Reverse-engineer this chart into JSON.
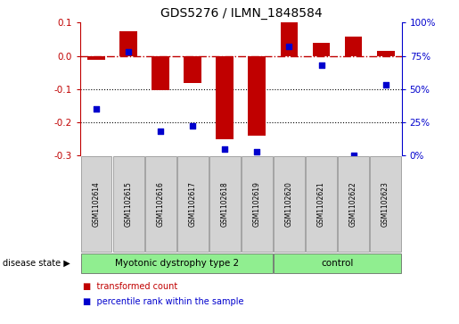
{
  "title": "GDS5276 / ILMN_1848584",
  "samples": [
    "GSM1102614",
    "GSM1102615",
    "GSM1102616",
    "GSM1102617",
    "GSM1102618",
    "GSM1102619",
    "GSM1102620",
    "GSM1102621",
    "GSM1102622",
    "GSM1102623"
  ],
  "red_values": [
    -0.012,
    0.075,
    -0.102,
    -0.082,
    -0.252,
    -0.24,
    0.1,
    0.04,
    0.057,
    0.015
  ],
  "blue_values": [
    35,
    78,
    18,
    22,
    5,
    3,
    82,
    68,
    0,
    53
  ],
  "ylim_left": [
    -0.3,
    0.1
  ],
  "ylim_right": [
    0,
    100
  ],
  "yticks_left": [
    -0.3,
    -0.2,
    -0.1,
    0.0,
    0.1
  ],
  "yticks_right": [
    0,
    25,
    50,
    75,
    100
  ],
  "ytick_labels_right": [
    "0%",
    "25%",
    "50%",
    "75%",
    "100%"
  ],
  "disease_groups": [
    {
      "label": "Myotonic dystrophy type 2",
      "start": 0,
      "end": 6,
      "color": "#90ee90"
    },
    {
      "label": "control",
      "start": 6,
      "end": 10,
      "color": "#90ee90"
    }
  ],
  "bar_color": "#c00000",
  "dot_color": "#0000cd",
  "hline_color": "#c00000",
  "dotted_line_color": "black",
  "bg_color": "white",
  "label_area_color": "#d3d3d3",
  "legend_red_label": "transformed count",
  "legend_blue_label": "percentile rank within the sample",
  "disease_state_label": "disease state"
}
